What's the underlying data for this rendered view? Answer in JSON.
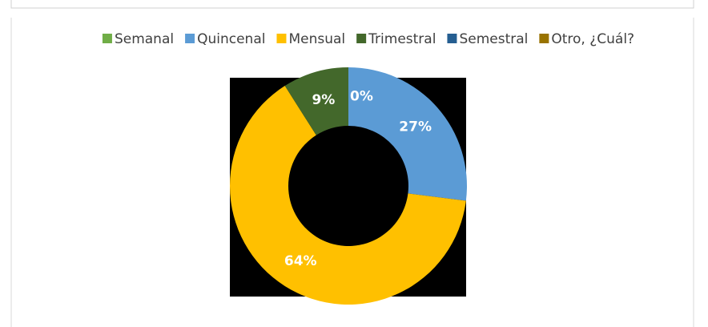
{
  "chart_data": {
    "type": "doughnut",
    "categories": [
      "Semanal",
      "Quincenal",
      "Mensual",
      "Trimestral",
      "Semestral",
      "Otro, ¿Cuál?"
    ],
    "values": [
      0,
      27,
      64,
      9,
      null,
      null
    ],
    "value_labels": [
      "0%",
      "27%",
      "64%",
      "9%",
      null,
      null
    ],
    "colors": [
      "#70ad47",
      "#5b9bd5",
      "#ffc000",
      "#43682b",
      "#255e91",
      "#997300"
    ],
    "legend": "top"
  }
}
